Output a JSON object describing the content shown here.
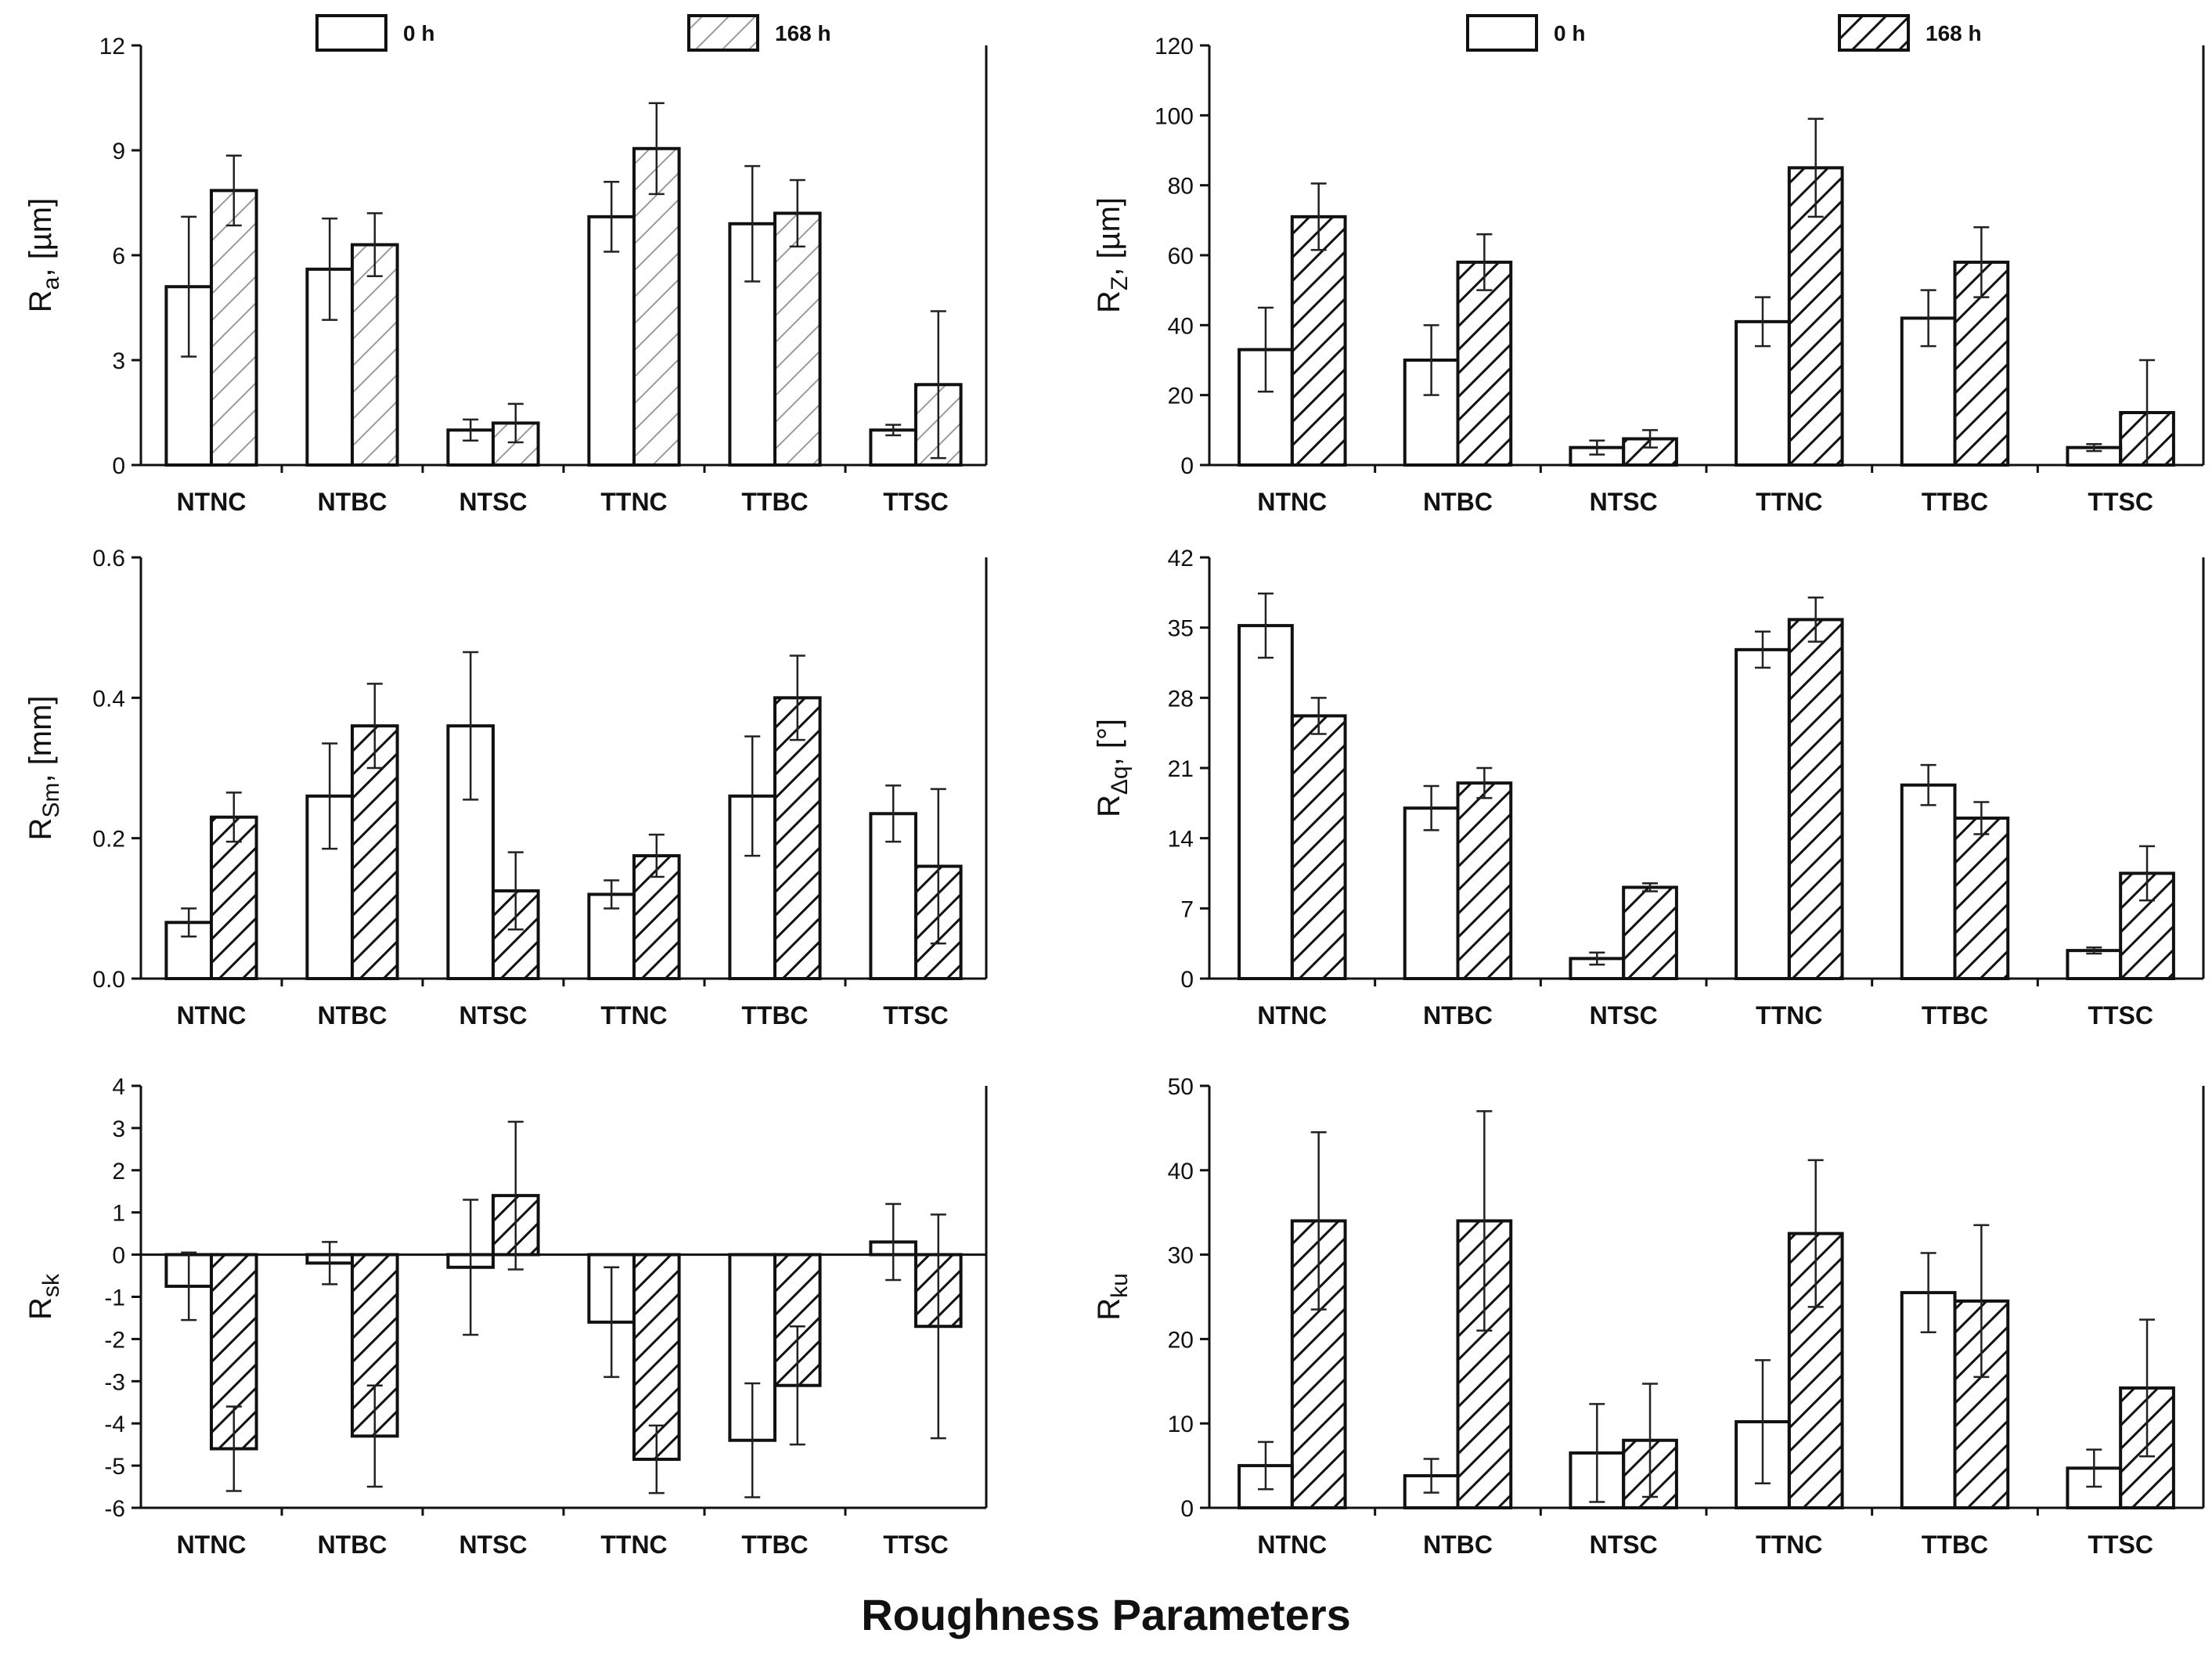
{
  "figure": {
    "xlabel": "Roughness Parameters",
    "legend": {
      "series0": "0 h",
      "series1": "168 h"
    }
  },
  "chart_data": [
    {
      "type": "bar",
      "ylabel": {
        "main": "R",
        "sub": "a",
        "rest": ", [µm]"
      },
      "categories": [
        "NTNC",
        "NTBC",
        "NTSC",
        "TTNC",
        "TTBC",
        "TTSC"
      ],
      "ylim": [
        0,
        12
      ],
      "yticks": [
        0,
        3,
        6,
        9,
        12
      ],
      "hatch": "light",
      "legend": true,
      "series": [
        {
          "name": "0 h",
          "values": [
            5.1,
            5.6,
            1.0,
            7.1,
            6.9,
            1.0
          ],
          "errors": [
            2.0,
            1.45,
            0.3,
            1.0,
            1.65,
            0.15
          ]
        },
        {
          "name": "168 h",
          "values": [
            7.85,
            6.3,
            1.2,
            9.05,
            7.2,
            2.3
          ],
          "errors": [
            1.0,
            0.9,
            0.55,
            1.3,
            0.95,
            2.1
          ]
        }
      ]
    },
    {
      "type": "bar",
      "ylabel": {
        "main": "R",
        "sub": "Z",
        "rest": ", [µm]"
      },
      "categories": [
        "NTNC",
        "NTBC",
        "NTSC",
        "TTNC",
        "TTBC",
        "TTSC"
      ],
      "ylim": [
        0,
        120
      ],
      "yticks": [
        0,
        20,
        40,
        60,
        80,
        100,
        120
      ],
      "hatch": "dark",
      "legend": true,
      "series": [
        {
          "name": "0 h",
          "values": [
            33,
            30,
            5,
            41,
            42,
            5
          ],
          "errors": [
            12,
            10,
            2,
            7,
            8,
            1
          ]
        },
        {
          "name": "168 h",
          "values": [
            71,
            58,
            7.5,
            85,
            58,
            15
          ],
          "errors": [
            9.5,
            8,
            2.5,
            14,
            10,
            15
          ]
        }
      ]
    },
    {
      "type": "bar",
      "ylabel": {
        "main": "R",
        "sub": "Sm",
        "rest": ", [mm]"
      },
      "categories": [
        "NTNC",
        "NTBC",
        "NTSC",
        "TTNC",
        "TTBC",
        "TTSC"
      ],
      "ylim": [
        0,
        0.6
      ],
      "yticks": [
        "0.0",
        "0.2",
        "0.4",
        "0.6"
      ],
      "hatch": "dark",
      "legend": false,
      "series": [
        {
          "name": "0 h",
          "values": [
            0.08,
            0.26,
            0.36,
            0.12,
            0.26,
            0.235
          ],
          "errors": [
            0.02,
            0.075,
            0.105,
            0.02,
            0.085,
            0.04
          ]
        },
        {
          "name": "168 h",
          "values": [
            0.23,
            0.36,
            0.125,
            0.175,
            0.4,
            0.16
          ],
          "errors": [
            0.035,
            0.06,
            0.055,
            0.03,
            0.06,
            0.11
          ]
        }
      ]
    },
    {
      "type": "bar",
      "ylabel": {
        "main": "R",
        "sub": "Δq",
        "rest": ", [°]"
      },
      "categories": [
        "NTNC",
        "NTBC",
        "NTSC",
        "TTNC",
        "TTBC",
        "TTSC"
      ],
      "ylim": [
        0,
        42
      ],
      "yticks": [
        0,
        7,
        14,
        21,
        28,
        35,
        42
      ],
      "hatch": "dark",
      "legend": false,
      "series": [
        {
          "name": "0 h",
          "values": [
            35.2,
            17,
            2,
            32.8,
            19.3,
            2.8
          ],
          "errors": [
            3.2,
            2.2,
            0.6,
            1.8,
            2.0,
            0.3
          ]
        },
        {
          "name": "168 h",
          "values": [
            26.2,
            19.5,
            9.1,
            35.8,
            16,
            10.5
          ],
          "errors": [
            1.8,
            1.5,
            0.4,
            2.2,
            1.6,
            2.7
          ]
        }
      ]
    },
    {
      "type": "bar",
      "ylabel": {
        "main": "R",
        "sub": "sk",
        "rest": ""
      },
      "categories": [
        "NTNC",
        "NTBC",
        "NTSC",
        "TTNC",
        "TTBC",
        "TTSC"
      ],
      "ylim": [
        -6,
        4
      ],
      "yticks": [
        -6,
        -5,
        -4,
        -3,
        -2,
        -1,
        0,
        1,
        2,
        3,
        4
      ],
      "hatch": "dark",
      "legend": false,
      "zero_line": true,
      "series": [
        {
          "name": "0 h",
          "values": [
            -0.75,
            -0.2,
            -0.3,
            -1.6,
            -4.4,
            0.3
          ],
          "errors": [
            0.8,
            0.5,
            1.6,
            1.3,
            1.35,
            0.9
          ]
        },
        {
          "name": "168 h",
          "values": [
            -4.6,
            -4.3,
            1.4,
            -4.85,
            -3.1,
            -1.7
          ],
          "errors": [
            1.0,
            1.2,
            1.75,
            0.8,
            1.4,
            2.65
          ]
        }
      ]
    },
    {
      "type": "bar",
      "ylabel": {
        "main": "R",
        "sub": "ku",
        "rest": ""
      },
      "categories": [
        "NTNC",
        "NTBC",
        "NTSC",
        "TTNC",
        "TTBC",
        "TTSC"
      ],
      "ylim": [
        0,
        50
      ],
      "yticks": [
        0,
        10,
        20,
        30,
        40,
        50
      ],
      "hatch": "dark",
      "legend": false,
      "series": [
        {
          "name": "0 h",
          "values": [
            5,
            3.8,
            6.5,
            10.2,
            25.5,
            4.7
          ],
          "errors": [
            2.8,
            2.0,
            5.8,
            7.3,
            4.7,
            2.2
          ]
        },
        {
          "name": "168 h",
          "values": [
            34,
            34,
            8,
            32.5,
            24.5,
            14.2
          ],
          "errors": [
            10.5,
            13,
            6.7,
            8.7,
            9,
            8.1
          ]
        }
      ]
    }
  ]
}
